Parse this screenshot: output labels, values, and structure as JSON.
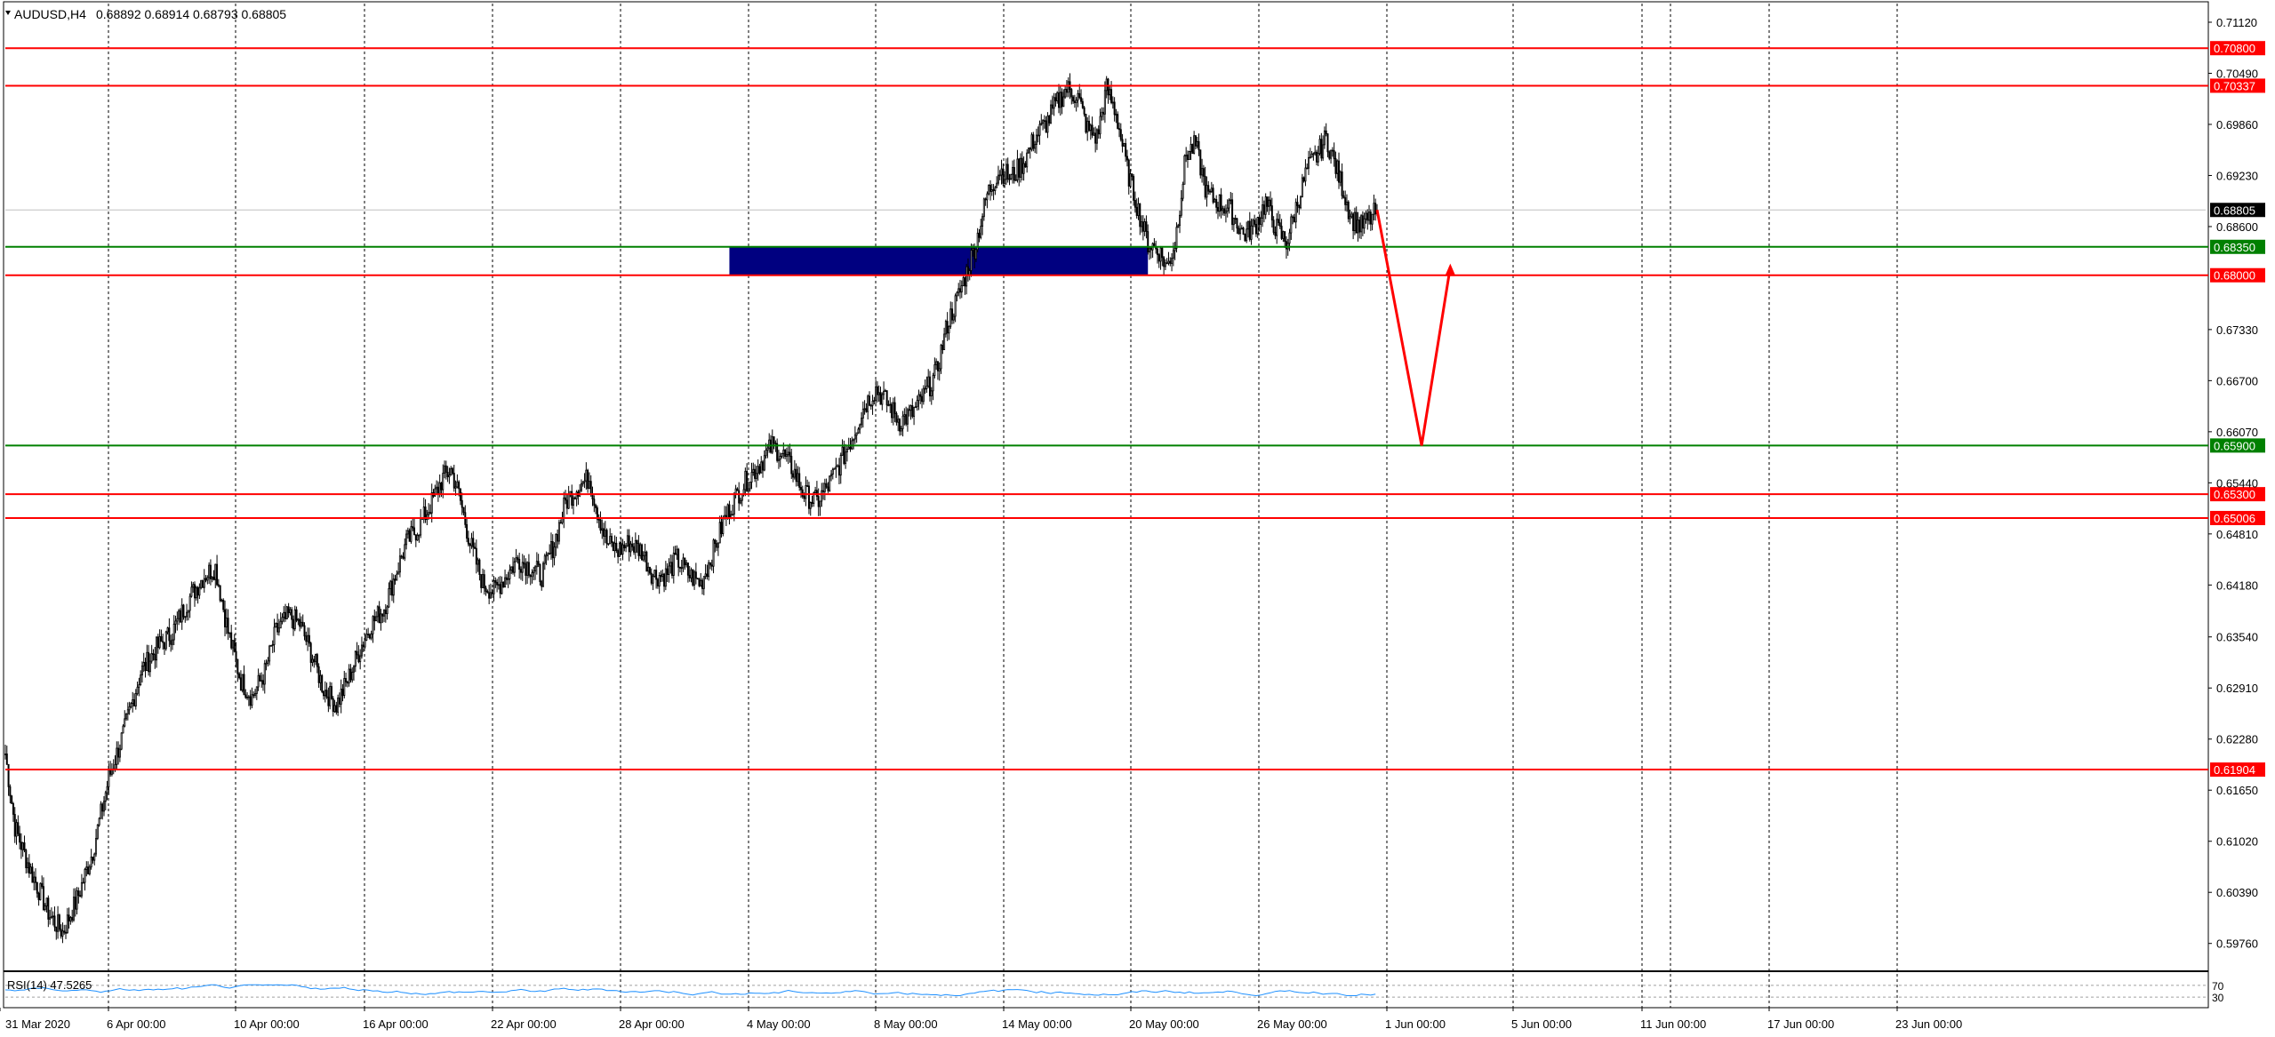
{
  "header": {
    "symbol": "AUDUSD,H4",
    "ohlc": "0.68892 0.68914 0.68793 0.68805",
    "triangle_icon": "dropdown-triangle-icon"
  },
  "colors": {
    "background": "#ffffff",
    "candle": "#000000",
    "grid": "#000000",
    "resistance": "#ff0000",
    "support": "#008000",
    "zone": "#000080",
    "current_price_bg": "#000000",
    "rsi_line": "#1e90ff",
    "arrow": "#ff0000"
  },
  "chart_data": {
    "type": "candlestick",
    "title": "AUDUSD,H4",
    "timeframe": "H4",
    "ylim": [
      0.5945,
      0.7135
    ],
    "y_ticks": [
      "0.71120",
      "0.70490",
      "0.69860",
      "0.69230",
      "0.68600",
      "0.67330",
      "0.66700",
      "0.66070",
      "0.65440",
      "0.64810",
      "0.64180",
      "0.63540",
      "0.62910",
      "0.62280",
      "0.61650",
      "0.61020",
      "0.60390",
      "0.59760"
    ],
    "x_ticks": [
      "31 Mar 2020",
      "6 Apr 00:00",
      "10 Apr 00:00",
      "16 Apr 00:00",
      "22 Apr 00:00",
      "28 Apr 00:00",
      "4 May 00:00",
      "8 May 00:00",
      "14 May 00:00",
      "20 May 00:00",
      "26 May 00:00",
      "1 Jun 00:00",
      "5 Jun 00:00",
      "11 Jun 00:00",
      "17 Jun 00:00",
      "23 Jun 00:00"
    ],
    "close_path": [
      [
        0,
        0.621
      ],
      [
        6,
        0.612
      ],
      [
        15,
        0.607
      ],
      [
        28,
        0.601
      ],
      [
        36,
        0.599
      ],
      [
        45,
        0.603
      ],
      [
        55,
        0.609
      ],
      [
        65,
        0.618
      ],
      [
        75,
        0.624
      ],
      [
        85,
        0.631
      ],
      [
        95,
        0.634
      ],
      [
        105,
        0.636
      ],
      [
        115,
        0.64
      ],
      [
        125,
        0.643
      ],
      [
        132,
        0.644
      ],
      [
        140,
        0.636
      ],
      [
        148,
        0.63
      ],
      [
        155,
        0.628
      ],
      [
        163,
        0.631
      ],
      [
        170,
        0.636
      ],
      [
        178,
        0.638
      ],
      [
        185,
        0.637
      ],
      [
        193,
        0.633
      ],
      [
        200,
        0.629
      ],
      [
        208,
        0.627
      ],
      [
        215,
        0.63
      ],
      [
        223,
        0.634
      ],
      [
        230,
        0.637
      ],
      [
        238,
        0.639
      ],
      [
        245,
        0.643
      ],
      [
        252,
        0.647
      ],
      [
        260,
        0.649
      ],
      [
        268,
        0.652
      ],
      [
        275,
        0.655
      ],
      [
        280,
        0.656
      ],
      [
        285,
        0.653
      ],
      [
        292,
        0.647
      ],
      [
        300,
        0.642
      ],
      [
        307,
        0.641
      ],
      [
        315,
        0.643
      ],
      [
        322,
        0.645
      ],
      [
        330,
        0.644
      ],
      [
        337,
        0.643
      ],
      [
        345,
        0.647
      ],
      [
        352,
        0.652
      ],
      [
        360,
        0.654
      ],
      [
        367,
        0.655
      ],
      [
        372,
        0.651
      ],
      [
        378,
        0.647
      ],
      [
        385,
        0.646
      ],
      [
        392,
        0.647
      ],
      [
        400,
        0.646
      ],
      [
        407,
        0.643
      ],
      [
        415,
        0.643
      ],
      [
        422,
        0.645
      ],
      [
        430,
        0.643
      ],
      [
        437,
        0.642
      ],
      [
        445,
        0.646
      ],
      [
        452,
        0.65
      ],
      [
        460,
        0.653
      ],
      [
        467,
        0.655
      ],
      [
        475,
        0.657
      ],
      [
        482,
        0.659
      ],
      [
        488,
        0.658
      ],
      [
        495,
        0.656
      ],
      [
        502,
        0.653
      ],
      [
        510,
        0.652
      ],
      [
        517,
        0.654
      ],
      [
        525,
        0.657
      ],
      [
        532,
        0.66
      ],
      [
        540,
        0.664
      ],
      [
        547,
        0.666
      ],
      [
        555,
        0.664
      ],
      [
        562,
        0.662
      ],
      [
        570,
        0.663
      ],
      [
        577,
        0.665
      ],
      [
        585,
        0.668
      ],
      [
        592,
        0.674
      ],
      [
        600,
        0.678
      ],
      [
        605,
        0.681
      ],
      [
        610,
        0.684
      ],
      [
        617,
        0.69
      ],
      [
        625,
        0.693
      ],
      [
        632,
        0.692
      ],
      [
        640,
        0.694
      ],
      [
        647,
        0.697
      ],
      [
        655,
        0.699
      ],
      [
        660,
        0.701
      ],
      [
        667,
        0.703
      ],
      [
        674,
        0.702
      ],
      [
        680,
        0.698
      ],
      [
        686,
        0.697
      ],
      [
        692,
        0.703
      ],
      [
        698,
        0.7
      ],
      [
        705,
        0.693
      ],
      [
        712,
        0.688
      ],
      [
        718,
        0.684
      ],
      [
        725,
        0.683
      ],
      [
        730,
        0.681
      ],
      [
        735,
        0.684
      ],
      [
        742,
        0.695
      ],
      [
        748,
        0.696
      ],
      [
        755,
        0.69
      ],
      [
        762,
        0.689
      ],
      [
        770,
        0.688
      ],
      [
        778,
        0.685
      ],
      [
        785,
        0.686
      ],
      [
        792,
        0.689
      ],
      [
        798,
        0.686
      ],
      [
        805,
        0.684
      ],
      [
        812,
        0.689
      ],
      [
        818,
        0.693
      ],
      [
        825,
        0.695
      ],
      [
        830,
        0.697
      ],
      [
        835,
        0.694
      ],
      [
        840,
        0.691
      ],
      [
        846,
        0.687
      ],
      [
        852,
        0.686
      ],
      [
        858,
        0.687
      ],
      [
        862,
        0.688
      ]
    ],
    "bars_total": 862,
    "levels": [
      {
        "value": 0.708,
        "label": "0.70800",
        "color": "#ff0000",
        "type": "resistance"
      },
      {
        "value": 0.70337,
        "label": "0.70337",
        "color": "#ff0000",
        "type": "resistance"
      },
      {
        "value": 0.6835,
        "label": "0.68350",
        "color": "#008000",
        "type": "support"
      },
      {
        "value": 0.68,
        "label": "0.68000",
        "color": "#ff0000",
        "type": "resistance"
      },
      {
        "value": 0.659,
        "label": "0.65900",
        "color": "#008000",
        "type": "support"
      },
      {
        "value": 0.653,
        "label": "0.65300",
        "color": "#ff0000",
        "type": "resistance"
      },
      {
        "value": 0.65006,
        "label": "0.65006",
        "color": "#ff0000",
        "type": "resistance"
      },
      {
        "value": 0.61904,
        "label": "0.61904",
        "color": "#ff0000",
        "type": "resistance"
      }
    ],
    "current_price": {
      "value": 0.68805,
      "label": "0.68805"
    },
    "zone": {
      "from_bar": 455,
      "to_bar": 718,
      "low": 0.68,
      "high": 0.6835,
      "color": "#000080"
    },
    "projection_arrow": [
      {
        "bar": 862,
        "price": 0.68805
      },
      {
        "bar": 890,
        "price": 0.659
      },
      {
        "bar": 908,
        "price": 0.681
      }
    ],
    "rsi": {
      "label": "RSI(14) 47.5265",
      "levels": [
        "70",
        "30"
      ],
      "ylim": [
        0,
        100
      ],
      "value": 47.5265
    }
  }
}
